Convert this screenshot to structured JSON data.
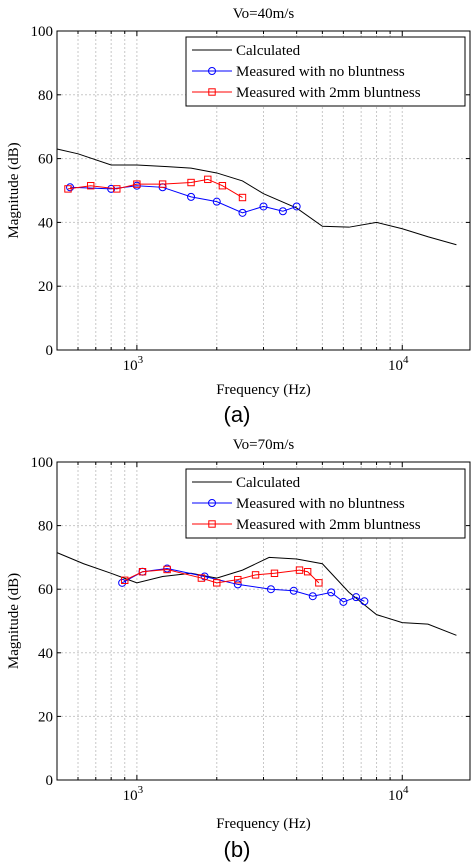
{
  "chart_data": [
    {
      "type": "line",
      "title": "Vo=40m/s",
      "panel_label": "(a)",
      "xlabel": "Frequency (Hz)",
      "ylabel": "Magnitude (dB)",
      "xscale": "log",
      "xlim": [
        500,
        18000
      ],
      "ylim": [
        0,
        100
      ],
      "yticks": [
        0,
        20,
        40,
        60,
        80,
        100
      ],
      "xticks": [
        {
          "value": 1000,
          "base": "10",
          "exp": "3"
        },
        {
          "value": 10000,
          "base": "10",
          "exp": "4"
        }
      ],
      "grid": true,
      "legend_position": "top-right",
      "series": [
        {
          "name": "Calculated",
          "color": "#000000",
          "marker": "none",
          "x": [
            500,
            600,
            800,
            1000,
            1300,
            1600,
            2000,
            2500,
            3000,
            4000,
            5000,
            6300,
            8000,
            10000,
            12500,
            16000
          ],
          "y": [
            63,
            61.5,
            58,
            58,
            57.5,
            57,
            55.5,
            53,
            49,
            44.5,
            38.8,
            38.5,
            40,
            38,
            35.5,
            33
          ]
        },
        {
          "name": "Measured with no bluntness",
          "color": "#0000ff",
          "marker": "circle",
          "x": [
            560,
            800,
            1000,
            1250,
            1600,
            2000,
            2500,
            3000,
            3550,
            4000
          ],
          "y": [
            51,
            50.5,
            51.5,
            51,
            48,
            46.5,
            43,
            45,
            43.5,
            45
          ]
        },
        {
          "name": "Measured with 2mm bluntness",
          "color": "#ff0000",
          "marker": "square",
          "x": [
            550,
            670,
            840,
            1000,
            1250,
            1600,
            1850,
            2100,
            2500
          ],
          "y": [
            50.5,
            51.5,
            50.5,
            52,
            52,
            52.5,
            53.5,
            51.5,
            47.8
          ]
        }
      ]
    },
    {
      "type": "line",
      "title": "Vo=70m/s",
      "panel_label": "(b)",
      "xlabel": "Frequency (Hz)",
      "ylabel": "Magnitude (dB)",
      "xscale": "log",
      "xlim": [
        500,
        18000
      ],
      "ylim": [
        0,
        100
      ],
      "yticks": [
        0,
        20,
        40,
        60,
        80,
        100
      ],
      "xticks": [
        {
          "value": 1000,
          "base": "10",
          "exp": "3"
        },
        {
          "value": 10000,
          "base": "10",
          "exp": "4"
        }
      ],
      "grid": true,
      "legend_position": "top-right",
      "series": [
        {
          "name": "Calculated",
          "color": "#000000",
          "marker": "none",
          "x": [
            500,
            630,
            800,
            1000,
            1250,
            1600,
            2000,
            2500,
            3150,
            4000,
            5000,
            6300,
            8000,
            10000,
            12500,
            16000
          ],
          "y": [
            71.5,
            68,
            65,
            62,
            64,
            65,
            63.5,
            66,
            70,
            69.5,
            68,
            59,
            52,
            49.5,
            49,
            45.5
          ]
        },
        {
          "name": "Measured with no bluntness",
          "color": "#0000ff",
          "marker": "circle",
          "x": [
            880,
            1050,
            1300,
            1800,
            2400,
            3200,
            3900,
            4600,
            5400,
            6000,
            6700,
            7200
          ],
          "y": [
            62,
            65.5,
            66.5,
            64,
            61.5,
            60,
            59.5,
            57.8,
            59,
            56,
            57.5,
            56.2
          ]
        },
        {
          "name": "Measured with 2mm bluntness",
          "color": "#ff0000",
          "marker": "square",
          "x": [
            900,
            1050,
            1300,
            1750,
            2000,
            2400,
            2800,
            3300,
            4100,
            4400,
            4850
          ],
          "y": [
            62.8,
            65.5,
            66.2,
            63.5,
            62,
            63,
            64.5,
            65,
            66,
            65.5,
            62
          ]
        }
      ]
    }
  ]
}
